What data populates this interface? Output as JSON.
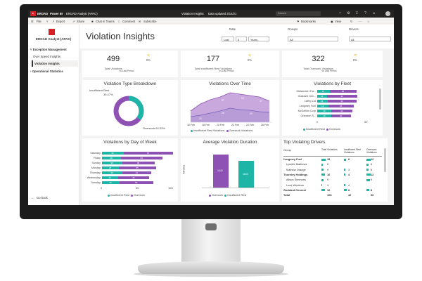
{
  "titlebar": {
    "brand": "EROAD",
    "app": "Power BI",
    "workspace": "EROAD Analyst (APAC)",
    "doc_title": "Violation Insights",
    "data_updated": "Data updated 3/14/21",
    "search_placeholder": "Search"
  },
  "menubar": {
    "file": "File",
    "export": "Export",
    "share": "Share",
    "chat": "Chat in Teams",
    "comment": "Comment",
    "subscribe": "Subscribe",
    "bookmarks": "Bookmarks",
    "view": "View"
  },
  "sidebar": {
    "org": "EROAD Analyst (APAC)",
    "sections": [
      {
        "label": "Exception Management",
        "items": [
          "Over Speed Insights",
          "Violation Insights"
        ]
      },
      {
        "label": "Operational Statistics",
        "items": []
      }
    ],
    "back": "Go back"
  },
  "header": {
    "title": "Violation Insights",
    "date_label": "Date",
    "date_mode": "Last",
    "date_num": "5",
    "date_unit": "Years",
    "groups_label": "Groups",
    "groups_value": "All",
    "drivers_label": "Drivers",
    "drivers_value": "All"
  },
  "kpis": [
    {
      "value": "499",
      "label": "Total Violations",
      "change": "0%",
      "change_label": "vs Last Period"
    },
    {
      "value": "177",
      "label": "Total Insufficient Rest Violations",
      "change": "0%",
      "change_label": "vs Last Period"
    },
    {
      "value": "322",
      "label": "Total Overwork Violations",
      "change": "0%",
      "change_label": "vs Last Period"
    }
  ],
  "charts": {
    "type_breakdown": {
      "title": "Violation Type Breakdown",
      "label_rest": "Insufficient Rest",
      "pct_rest": "35.47%",
      "label_overwork": "Overwork 64.53%"
    },
    "over_time": {
      "title": "Violations Over Time",
      "dates": [
        "16 Feb",
        "18 Feb",
        "20 Feb",
        "22 Feb",
        "24 Feb",
        "26 Feb"
      ],
      "legend": [
        "Insufficient Rest Violations",
        "Overwork Violations"
      ]
    },
    "by_fleet": {
      "title": "Violations by Fleet",
      "axis": [
        "0",
        "50"
      ],
      "legend": [
        "Insufficient Rest",
        "Overwork"
      ]
    },
    "by_day": {
      "title": "Violations by Day of Week",
      "axis": [
        "0",
        "50",
        "100"
      ],
      "legend": [
        "Insufficient Rest",
        "Overwork"
      ]
    },
    "avg_duration": {
      "title": "Average Violation Duration",
      "ylabel": "Minutes",
      "legend": [
        "Overwork",
        "Insufficient Rest"
      ],
      "values": [
        "1442",
        "1163"
      ]
    },
    "top_drivers": {
      "title": "Top Violating Drivers",
      "columns": [
        "Group",
        "Total Violations",
        "Insufficient Rest Violations",
        "Overwork Violations"
      ]
    }
  },
  "chart_data": [
    {
      "type": "pie",
      "title": "Violation Type Breakdown",
      "categories": [
        "Insufficient Rest",
        "Overwork"
      ],
      "values": [
        35.47,
        64.53
      ],
      "colors": [
        "#1cb5a6",
        "#8e52b4"
      ]
    },
    {
      "type": "area",
      "title": "Violations Over Time",
      "x": [
        "16 Feb",
        "17 Feb",
        "18 Feb",
        "19 Feb",
        "20 Feb",
        "21 Feb",
        "22 Feb",
        "23 Feb",
        "24 Feb",
        "25 Feb",
        "26 Feb"
      ],
      "series": [
        {
          "name": "Insufficient Rest Violations",
          "values": [
            18,
            20,
            22,
            24,
            27,
            28,
            27,
            26,
            25,
            23,
            22
          ]
        },
        {
          "name": "Overwork Violations",
          "values": [
            40,
            46,
            52,
            54,
            58,
            57,
            55,
            54,
            52,
            49,
            48
          ]
        }
      ],
      "data_labels": [
        "20",
        "28",
        "29",
        "57",
        "54",
        "47"
      ]
    },
    {
      "type": "bar",
      "title": "Violations by Fleet",
      "categories": [
        "Melsenden Tra...",
        "Goddard Gen...",
        "Laffey Ltd",
        "Langmey Fuel",
        "McGellion Corp",
        "Grimston S..."
      ],
      "series": [
        {
          "name": "Insufficient Rest",
          "values": [
            13,
            10,
            11,
            12,
            15,
            15
          ]
        },
        {
          "name": "Overwork",
          "values": [
            28,
            32,
            30,
            26,
            22,
            20
          ]
        }
      ],
      "xlim": [
        0,
        50
      ]
    },
    {
      "type": "bar",
      "title": "Violations by Day of Week",
      "categories": [
        "Saturday",
        "Friday",
        "Sunday",
        "Monday",
        "Thursday",
        "Wednesday",
        "Tuesday"
      ],
      "series": [
        {
          "name": "Insufficient Rest",
          "values": [
            32,
            28,
            30,
            25,
            30,
            24,
            26
          ]
        },
        {
          "name": "Overwork",
          "values": [
            73,
            62,
            48,
            55,
            43,
            46,
            50
          ]
        }
      ],
      "xlim": [
        0,
        100
      ]
    },
    {
      "type": "bar",
      "title": "Average Violation Duration",
      "categories": [
        "Overwork",
        "Insufficient Rest"
      ],
      "values": [
        1442,
        1163
      ],
      "ylabel": "Minutes"
    }
  ],
  "top_drivers_rows": [
    {
      "name": "Langmey Fuel",
      "total": "18",
      "rest": "6",
      "over": "12",
      "bold": true
    },
    {
      "name": "Lynette Mathews",
      "total": "6",
      "rest": "",
      "over": "6",
      "bold": false
    },
    {
      "name": "Mathew Orange",
      "total": "9",
      "rest": "3",
      "over": "6",
      "bold": false
    },
    {
      "name": "Thornley Holdings",
      "total": "16",
      "rest": "4",
      "over": "12",
      "bold": true
    },
    {
      "name": "Alison Simmons",
      "total": "9",
      "rest": "",
      "over": "9",
      "bold": false
    },
    {
      "name": "Luce Windrum",
      "total": "4",
      "rest": "4",
      "over": "",
      "bold": false
    },
    {
      "name": "Goddard General",
      "total": "16",
      "rest": "8",
      "over": "8",
      "bold": true
    }
  ],
  "top_drivers_total": {
    "name": "Total",
    "total": "108",
    "rest": "42",
    "over": "66"
  },
  "colors": {
    "teal": "#1cb5a6",
    "purple": "#8e52b4",
    "brand": "#d71f26",
    "accent": "#e8b600"
  }
}
